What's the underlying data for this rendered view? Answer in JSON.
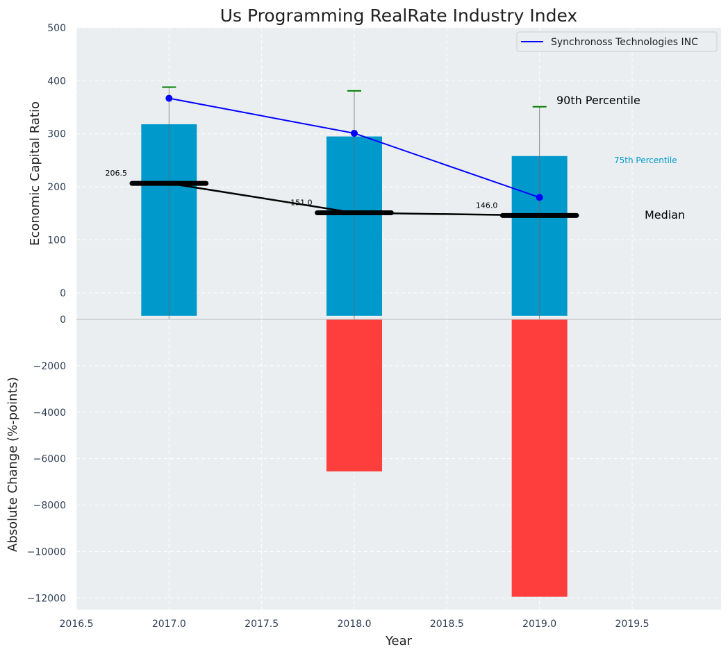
{
  "chart_data": {
    "title": "Us Programming RealRate Industry Index",
    "xlabel": "Year",
    "x_ticks": [
      "2016.5",
      "2017.0",
      "2017.5",
      "2018.0",
      "2018.5",
      "2019.0",
      "2019.5"
    ],
    "x_tick_values": [
      2016.5,
      2017.0,
      2017.5,
      2018.0,
      2018.5,
      2019.0,
      2019.5
    ],
    "xlim": [
      2016.5,
      2019.98
    ],
    "grid": true,
    "top_panel": {
      "type": "bar",
      "ylabel": "Economic Capital Ratio",
      "ylim": [
        -50,
        500
      ],
      "y_ticks": [
        "0",
        "100",
        "200",
        "300",
        "400",
        "500"
      ],
      "y_tick_values": [
        0,
        100,
        200,
        300,
        400,
        500
      ],
      "x": [
        2017,
        2018,
        2019
      ],
      "bar_width": 0.3,
      "bars_75th_percentile": [
        318,
        295,
        258
      ],
      "bar_color": "#0099cc",
      "whisker_90th_percentile": [
        388,
        381,
        351
      ],
      "whisker_cap_color": "#008000",
      "median": [
        206.5,
        151.0,
        146.0
      ],
      "median_labels": [
        "206.5",
        "151.0",
        "146.0"
      ],
      "median_color": "#000000",
      "series": [
        {
          "name": "Synchronoss Technologies INC",
          "values": [
            367,
            301,
            180
          ],
          "color": "#0000ff"
        }
      ],
      "legend_position": "upper right",
      "annotations": {
        "p90": "90th Percentile",
        "p75": "75th Percentile",
        "median": "Median"
      }
    },
    "bottom_panel": {
      "type": "bar",
      "ylabel": "Absolute Change (%-points)",
      "ylim": [
        -12500,
        0
      ],
      "y_ticks": [
        "0",
        "−2000",
        "−4000",
        "−6000",
        "−8000",
        "−10000",
        "−12000"
      ],
      "y_tick_values": [
        0,
        -2000,
        -4000,
        -6000,
        -8000,
        -10000,
        -12000
      ],
      "x": [
        2017,
        2018,
        2019
      ],
      "values": [
        0,
        -6550,
        -11950
      ],
      "bar_color": "#ff3333"
    }
  }
}
